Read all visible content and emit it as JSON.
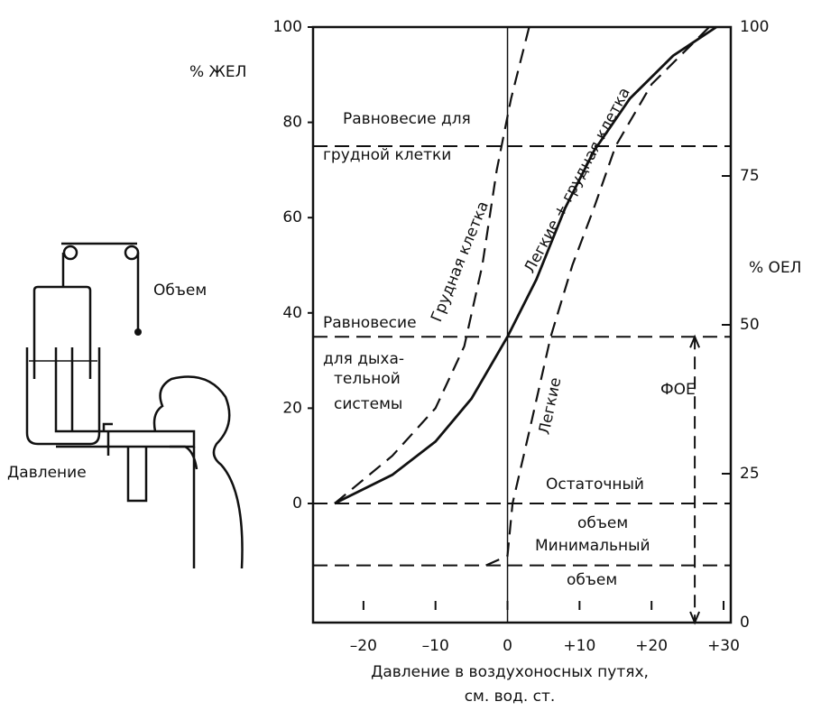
{
  "chart_data": {
    "type": "line",
    "ylabel": "% ЖЕЛ",
    "y2label": "% ОЕЛ",
    "xlabel": [
      "Давление в воздухоносных путях,",
      "см. вод. ст."
    ],
    "xlim": [
      -27,
      31
    ],
    "ylim": [
      -25,
      100
    ],
    "y2lim": [
      0,
      100
    ],
    "xticks": [
      {
        "value": -20,
        "label": "–20"
      },
      {
        "value": -10,
        "label": "–10"
      },
      0,
      {
        "value": 10,
        "label": "+10"
      },
      {
        "value": 20,
        "label": "+20"
      },
      {
        "value": 30,
        "label": "+30"
      }
    ],
    "yticks": [
      0,
      20,
      40,
      60,
      80,
      100
    ],
    "y2ticks": [
      0,
      25,
      50,
      75,
      100
    ],
    "series": [
      {
        "name": "Грудная клетка",
        "color": "#111",
        "dash": true,
        "x": [
          -24,
          -16,
          -10,
          -6,
          -3.5,
          -1.5,
          0.5,
          3
        ],
        "values": [
          0,
          10,
          20,
          33,
          50,
          70,
          85,
          100
        ]
      },
      {
        "name": "Легкие + грудная клетка",
        "color": "#111",
        "dash": false,
        "x": [
          -24,
          -16,
          -10,
          -5,
          0,
          4,
          8,
          12,
          17,
          23,
          29
        ],
        "values": [
          0,
          6,
          13,
          22,
          35,
          47,
          62,
          74,
          85,
          94,
          100
        ]
      },
      {
        "name": "Легкие",
        "color": "#111",
        "dash": true,
        "x": [
          -3,
          0,
          0.7,
          3,
          6,
          9,
          12,
          15,
          20,
          28
        ],
        "values": [
          -13,
          -11,
          0,
          15,
          35,
          50,
          62,
          75,
          88,
          100
        ]
      }
    ],
    "hlines": [
      75,
      35,
      0,
      -13
    ],
    "vlines": [
      {
        "x": 0,
        "style": "solid"
      },
      {
        "x": 26,
        "style": "dashed"
      }
    ],
    "annotations": [
      "Равновесие для",
      "грудной клетки",
      "Равновесие",
      "для дыха-",
      "тельной",
      "системы",
      "ФОЕ",
      "Остаточный",
      "объем",
      "Минимальный",
      "объем"
    ],
    "diagram_labels": [
      "Объем",
      "Давление"
    ]
  }
}
